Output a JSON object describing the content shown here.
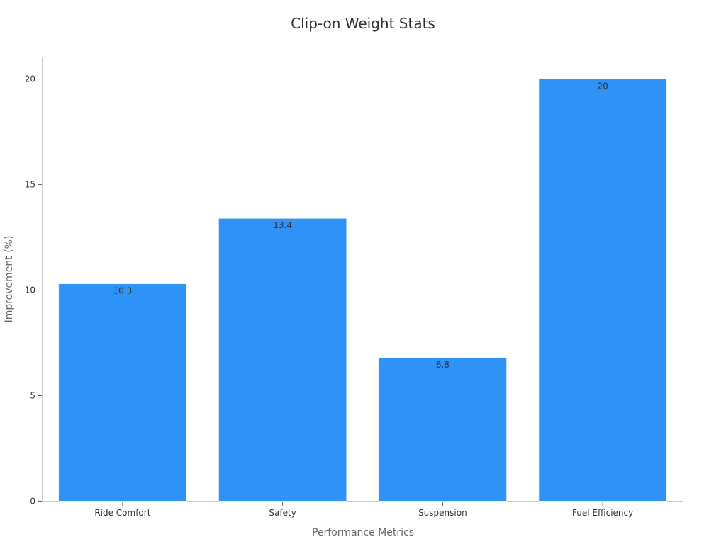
{
  "chart_data": {
    "type": "bar",
    "title": "Clip-on Weight Stats",
    "xlabel": "Performance Metrics",
    "ylabel": "Improvement (%)",
    "categories": [
      "Ride Comfort",
      "Safety",
      "Suspension",
      "Fuel Efficiency"
    ],
    "values": [
      10.3,
      13.4,
      6.8,
      20
    ],
    "ylim": [
      0,
      21
    ],
    "yticks": [
      0,
      5,
      10,
      15,
      20
    ],
    "bar_color": "#2f92f7",
    "grid": false,
    "legend": "none"
  }
}
